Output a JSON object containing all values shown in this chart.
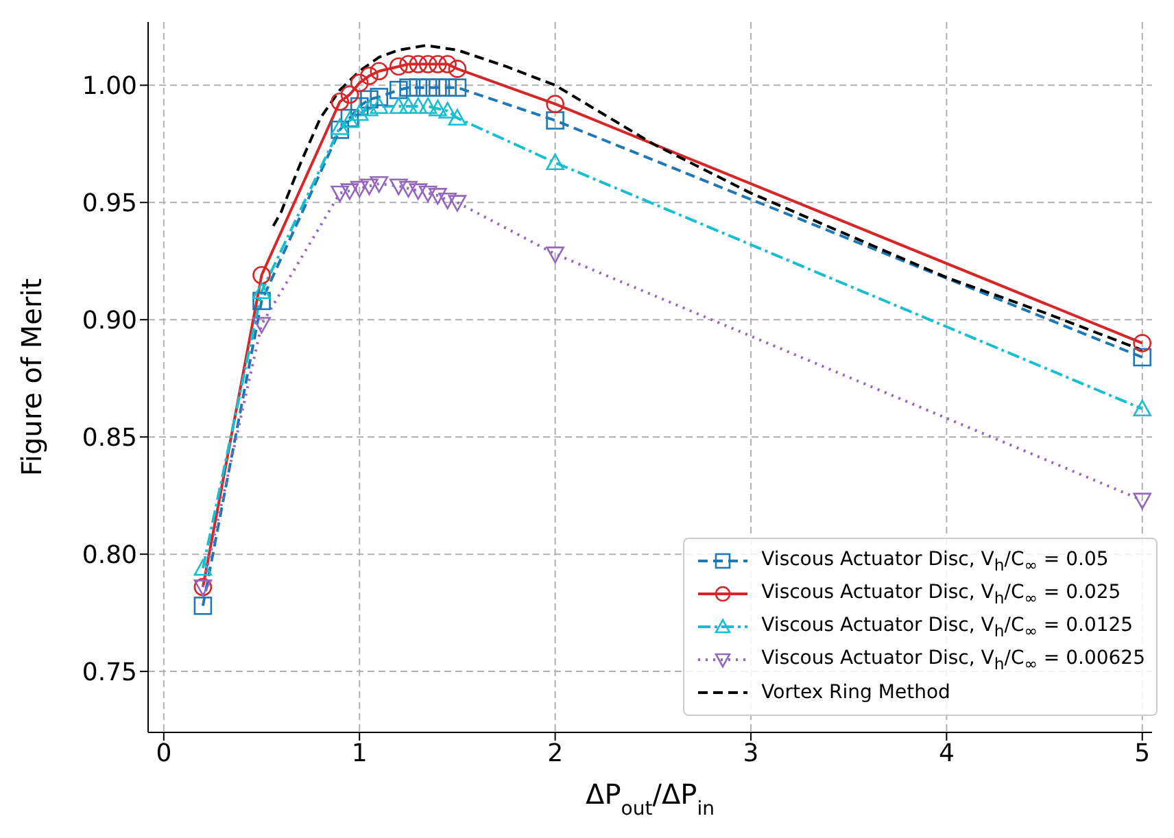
{
  "chart_data": {
    "type": "line",
    "xlabel": "ΔP$_{out}$/ΔP$_{in}$",
    "ylabel": "Figure of Merit",
    "xlim": [
      -0.08,
      5.05
    ],
    "ylim": [
      0.724,
      1.027
    ],
    "xticks": [
      0,
      1,
      2,
      3,
      4,
      5
    ],
    "yticks": [
      {
        "value": 0.75,
        "label": "0.75"
      },
      {
        "value": 0.8,
        "label": "0.80"
      },
      {
        "value": 0.85,
        "label": "0.85"
      },
      {
        "value": 0.9,
        "label": "0.90"
      },
      {
        "value": 0.95,
        "label": "0.95"
      },
      {
        "value": 1,
        "label": "1.00"
      }
    ],
    "grid": true,
    "legend": "bottom right",
    "series": [
      {
        "name": "Viscous Actuator Disc, V$_{h}$/C$_{∞}$ = 0.05",
        "color": "#1f77b4",
        "marker": "square",
        "line_style": "dashed",
        "x": [
          0.2,
          0.5,
          0.9,
          0.95,
          1.0,
          1.05,
          1.1,
          1.2,
          1.25,
          1.3,
          1.35,
          1.4,
          1.45,
          1.5,
          2,
          5
        ],
        "values": [
          0.778,
          0.908,
          0.981,
          0.986,
          0.991,
          0.994,
          0.995,
          0.998,
          0.999,
          0.999,
          0.999,
          0.999,
          0.999,
          0.999,
          0.985,
          0.884
        ]
      },
      {
        "name": "Viscous Actuator Disc, V$_{h}$/C$_{∞}$ = 0.025",
        "color": "#d62728",
        "marker": "circle",
        "line_style": "solid",
        "x": [
          0.2,
          0.5,
          0.9,
          0.95,
          1.0,
          1.05,
          1.1,
          1.2,
          1.25,
          1.3,
          1.35,
          1.4,
          1.45,
          1.5,
          2,
          5
        ],
        "values": [
          0.786,
          0.919,
          0.993,
          0.996,
          1.001,
          1.004,
          1.006,
          1.008,
          1.009,
          1.009,
          1.009,
          1.009,
          1.009,
          1.007,
          0.992,
          0.89
        ]
      },
      {
        "name": "Viscous Actuator Disc, V$_{h}$/C$_{∞}$ = 0.0125",
        "color": "#17becf",
        "marker": "triangle",
        "line_style": "dashdot",
        "x": [
          0.2,
          0.5,
          0.9,
          0.95,
          1.0,
          1.05,
          1.1,
          1.2,
          1.25,
          1.3,
          1.35,
          1.4,
          1.45,
          1.5,
          2,
          5
        ],
        "values": [
          0.794,
          0.912,
          0.982,
          0.985,
          0.988,
          0.99,
          0.991,
          0.991,
          0.991,
          0.991,
          0.991,
          0.99,
          0.989,
          0.986,
          0.967,
          0.862
        ]
      },
      {
        "name": "Viscous Actuator Disc, V$_{h}$/C$_{∞}$ = 0.00625",
        "color": "#9467bd",
        "marker": "triangle-down",
        "line_style": "dotted",
        "x": [
          0.2,
          0.5,
          0.9,
          0.95,
          1.0,
          1.05,
          1.1,
          1.2,
          1.25,
          1.3,
          1.35,
          1.4,
          1.45,
          1.5,
          2,
          5
        ],
        "values": [
          0.786,
          0.898,
          0.954,
          0.955,
          0.956,
          0.957,
          0.958,
          0.957,
          0.956,
          0.955,
          0.954,
          0.953,
          0.951,
          0.95,
          0.928,
          0.823
        ]
      },
      {
        "name": "Vortex Ring Method",
        "color": "#000000",
        "marker": "none",
        "line_style": "dashed",
        "x": [
          0.56,
          0.6,
          0.7,
          0.8,
          0.9,
          1.0,
          1.1,
          1.2,
          1.34,
          1.5,
          1.75,
          2,
          2.5,
          3,
          3.5,
          4,
          4.5,
          5
        ],
        "values": [
          0.94,
          0.946,
          0.967,
          0.986,
          0.998,
          1.006,
          1.012,
          1.015,
          1.017,
          1.015,
          1.008,
          1.0,
          0.975,
          0.954,
          0.936,
          0.918,
          0.903,
          0.887
        ]
      }
    ]
  }
}
